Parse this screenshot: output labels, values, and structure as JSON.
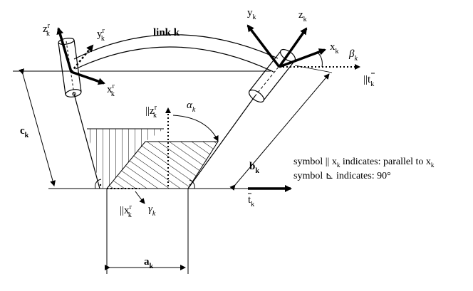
{
  "diagram": {
    "link_label": "link k",
    "left_frame": {
      "z": {
        "base": "z",
        "sup": "r",
        "sub": "k"
      },
      "y": {
        "base": "y",
        "sup": "r",
        "sub": "k"
      },
      "x": {
        "base": "x",
        "sup": "r",
        "sub": "k"
      }
    },
    "right_frame": {
      "y": {
        "base": "y",
        "sub": "k"
      },
      "z": {
        "base": "z",
        "sub": "k"
      },
      "x": {
        "base": "x",
        "sub": "k"
      }
    },
    "beta": {
      "base": "β",
      "sub": "k"
    },
    "parallel_t": {
      "prefix": "||",
      "base": "t",
      "sub": "k"
    },
    "parallel_zr": {
      "prefix": "||",
      "base": "z",
      "sup": "r",
      "sub": "k"
    },
    "alpha": {
      "base": "α",
      "sub": "k"
    },
    "c": {
      "base": "c",
      "sub": "k"
    },
    "b": {
      "base": "b",
      "sub": "k"
    },
    "a": {
      "base": "a",
      "sub": "k"
    },
    "t_bottom": {
      "base": "t",
      "sub": "k"
    },
    "parallel_xr": {
      "prefix": "||",
      "base": "x",
      "sup": "r",
      "sub": "k"
    },
    "gamma": {
      "base": "γ",
      "sub": "k"
    },
    "notes": {
      "line1": {
        "text": "symbol || x",
        "sub": "k",
        "text2": " indicates: parallel to x",
        "sub2": "k"
      },
      "line2": {
        "text": "symbol ⊾ indicates: 90°"
      }
    }
  }
}
